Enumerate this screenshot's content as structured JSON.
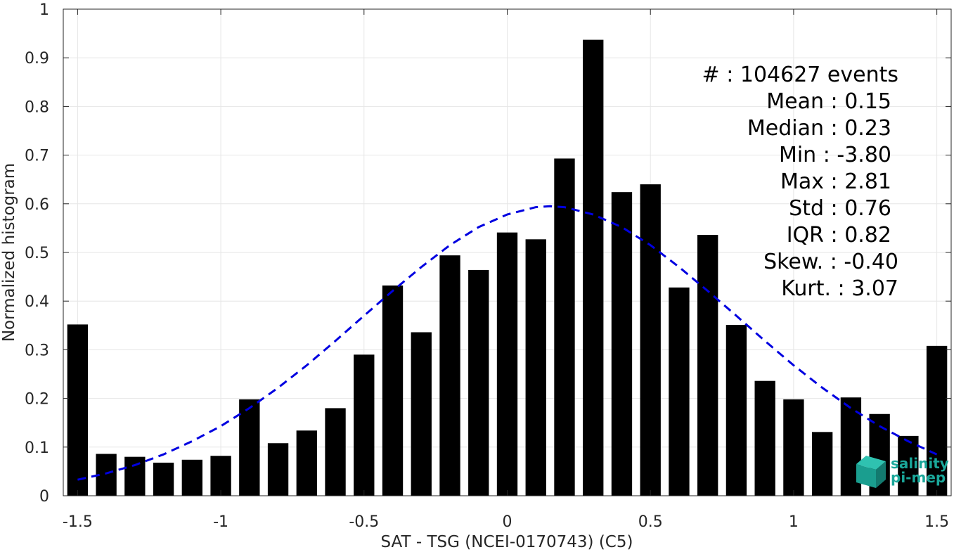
{
  "chart_data": {
    "type": "bar",
    "xlabel": "SAT - TSG (NCEI-0170743) (C5)",
    "ylabel": "Normalized histogram",
    "xlim": [
      -1.55,
      1.55
    ],
    "ylim": [
      0,
      1
    ],
    "grid": true,
    "x": [
      -1.5,
      -1.4,
      -1.3,
      -1.2,
      -1.1,
      -1.0,
      -0.9,
      -0.8,
      -0.7,
      -0.6,
      -0.5,
      -0.4,
      -0.3,
      -0.2,
      -0.1,
      0.0,
      0.1,
      0.2,
      0.3,
      0.4,
      0.5,
      0.6,
      0.7,
      0.8,
      0.9,
      1.0,
      1.1,
      1.2,
      1.3,
      1.4,
      1.5
    ],
    "values": [
      0.352,
      0.086,
      0.08,
      0.068,
      0.074,
      0.082,
      0.198,
      0.108,
      0.134,
      0.18,
      0.29,
      0.432,
      0.336,
      0.494,
      0.464,
      0.541,
      0.527,
      0.693,
      0.937,
      0.624,
      0.64,
      0.428,
      0.536,
      0.351,
      0.236,
      0.198,
      0.131,
      0.202,
      0.168,
      0.123,
      0.308
    ],
    "bar_color": "#000000",
    "xticks": [
      "-1.5",
      "-1",
      "-0.5",
      "0",
      "0.5",
      "1",
      "1.5"
    ],
    "xtick_values": [
      -1.5,
      -1.0,
      -0.5,
      0.0,
      0.5,
      1.0,
      1.5
    ],
    "yticks": [
      "0",
      "0.1",
      "0.2",
      "0.3",
      "0.4",
      "0.5",
      "0.6",
      "0.7",
      "0.8",
      "0.9",
      "1"
    ],
    "ytick_values": [
      0,
      0.1,
      0.2,
      0.3,
      0.4,
      0.5,
      0.6,
      0.7,
      0.8,
      0.9,
      1.0
    ],
    "fit_curve": {
      "style": "dashed",
      "color": "#0000e0",
      "x": [
        -1.5,
        -1.4,
        -1.3,
        -1.2,
        -1.1,
        -1.0,
        -0.9,
        -0.8,
        -0.7,
        -0.6,
        -0.5,
        -0.4,
        -0.3,
        -0.2,
        -0.1,
        0.0,
        0.1,
        0.15,
        0.2,
        0.3,
        0.4,
        0.5,
        0.6,
        0.7,
        0.8,
        0.9,
        1.0,
        1.1,
        1.2,
        1.3,
        1.4,
        1.5
      ],
      "y": [
        0.033,
        0.046,
        0.063,
        0.085,
        0.112,
        0.143,
        0.18,
        0.222,
        0.268,
        0.318,
        0.37,
        0.421,
        0.47,
        0.515,
        0.552,
        0.578,
        0.593,
        0.595,
        0.593,
        0.578,
        0.552,
        0.515,
        0.47,
        0.421,
        0.37,
        0.318,
        0.268,
        0.222,
        0.18,
        0.143,
        0.112,
        0.085
      ]
    },
    "stats": [
      {
        "label": "#  : 104627 events"
      },
      {
        "label": "Mean : 0.15"
      },
      {
        "label": "Median : 0.23"
      },
      {
        "label": "Min : -3.80"
      },
      {
        "label": "Max : 2.81"
      },
      {
        "label": "Std : 0.76"
      },
      {
        "label": "IQR : 0.82"
      },
      {
        "label": "Skew. : -0.40"
      },
      {
        "label": "Kurt. : 3.07"
      }
    ]
  },
  "logo": {
    "line1": "salinity",
    "line2": "pi-mep",
    "color": "#1aa79a"
  }
}
